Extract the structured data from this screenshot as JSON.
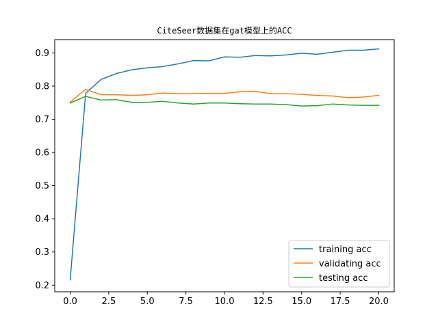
{
  "chart_data": {
    "type": "line",
    "title": "CiteSeer数据集在gat模型上的ACC",
    "xlabel": "",
    "ylabel": "",
    "xlim": [
      -1,
      21
    ],
    "ylim": [
      0.18,
      0.94
    ],
    "xticks": [
      0,
      2.5,
      5,
      7.5,
      10,
      12.5,
      15,
      17.5,
      20
    ],
    "xtick_labels": [
      "0.0",
      "2.5",
      "5.0",
      "7.5",
      "10.0",
      "12.5",
      "15.0",
      "17.5",
      "20.0"
    ],
    "yticks": [
      0.2,
      0.3,
      0.4,
      0.5,
      0.6,
      0.7,
      0.8,
      0.9
    ],
    "ytick_labels": [
      "0.2",
      "0.3",
      "0.4",
      "0.5",
      "0.6",
      "0.7",
      "0.8",
      "0.9"
    ],
    "grid": false,
    "legend_position": "lower-right",
    "x": [
      0,
      1,
      2,
      3,
      4,
      5,
      6,
      7,
      8,
      9,
      10,
      11,
      12,
      13,
      14,
      15,
      16,
      17,
      18,
      19,
      20
    ],
    "series": [
      {
        "name": "training acc",
        "color": "#1f77b4",
        "values": [
          0.216,
          0.778,
          0.82,
          0.838,
          0.849,
          0.855,
          0.859,
          0.867,
          0.877,
          0.876,
          0.888,
          0.887,
          0.892,
          0.891,
          0.894,
          0.899,
          0.896,
          0.902,
          0.908,
          0.908,
          0.912
        ]
      },
      {
        "name": "validating acc",
        "color": "#ff7f0e",
        "values": [
          0.752,
          0.79,
          0.774,
          0.774,
          0.772,
          0.774,
          0.779,
          0.777,
          0.777,
          0.778,
          0.778,
          0.783,
          0.784,
          0.777,
          0.777,
          0.775,
          0.772,
          0.77,
          0.765,
          0.767,
          0.772
        ]
      },
      {
        "name": "testing acc",
        "color": "#2ca02c",
        "values": [
          0.749,
          0.769,
          0.758,
          0.759,
          0.751,
          0.751,
          0.754,
          0.749,
          0.746,
          0.749,
          0.749,
          0.747,
          0.746,
          0.746,
          0.744,
          0.74,
          0.741,
          0.746,
          0.743,
          0.742,
          0.742
        ]
      }
    ]
  }
}
